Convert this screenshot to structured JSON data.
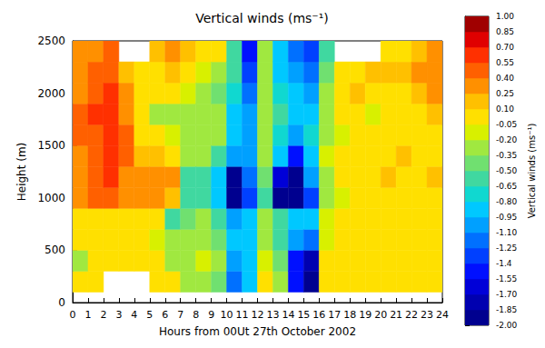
{
  "chart_data": {
    "type": "heatmap",
    "title": "Vertical winds (ms⁻¹)",
    "xlabel": "Hours from 00Ut 27th October 2002",
    "ylabel": "Height (m)",
    "xlim": [
      0,
      24
    ],
    "xticks": [
      0,
      1,
      2,
      3,
      4,
      5,
      6,
      7,
      8,
      9,
      10,
      11,
      12,
      13,
      14,
      15,
      16,
      17,
      18,
      19,
      20,
      21,
      22,
      23,
      24
    ],
    "ylim": [
      0,
      2500
    ],
    "yticks": [
      0,
      500,
      1000,
      1500,
      2000,
      2500
    ],
    "grid": false,
    "cells": {
      "x_edges": [
        0,
        1,
        2,
        3,
        4,
        5,
        6,
        7,
        8,
        9,
        10,
        11,
        12,
        13,
        14,
        15,
        16,
        17,
        18,
        19,
        20,
        21,
        22,
        23,
        24
      ],
      "y_edges": [
        100,
        300,
        500,
        700,
        900,
        1100,
        1300,
        1500,
        1700,
        1900,
        2100,
        2300,
        2500
      ],
      "values_by_hour": [
        [
          0.1,
          -0.3,
          0.0,
          0.1,
          0.3,
          0.4,
          0.4,
          0.5,
          0.5,
          0.4,
          0.3,
          0.3
        ],
        [
          0.1,
          0.1,
          0.0,
          0.1,
          0.5,
          0.5,
          0.5,
          0.5,
          0.6,
          0.5,
          0.5,
          0.4
        ],
        [
          null,
          0.1,
          0.1,
          0.1,
          0.5,
          0.6,
          0.6,
          0.7,
          0.7,
          0.6,
          0.5,
          0.5
        ],
        [
          null,
          0.1,
          0.1,
          0.1,
          0.4,
          0.4,
          0.5,
          0.5,
          0.4,
          0.3,
          0.2,
          null
        ],
        [
          null,
          0.1,
          0.0,
          0.0,
          0.4,
          0.3,
          0.2,
          0.1,
          0.0,
          0.1,
          0.0,
          null
        ],
        [
          0.1,
          0.0,
          -0.1,
          0.0,
          0.4,
          0.4,
          0.2,
          0.0,
          -0.2,
          0.0,
          0.1,
          0.2
        ],
        [
          0.0,
          -0.3,
          -0.2,
          -0.5,
          0.2,
          0.3,
          0.1,
          -0.1,
          -0.3,
          0.0,
          0.2,
          0.3
        ],
        [
          -0.3,
          -0.2,
          -0.3,
          -0.4,
          -0.6,
          -0.5,
          -0.3,
          -0.2,
          -0.3,
          -0.1,
          0.1,
          0.2
        ],
        [
          -0.2,
          -0.1,
          -0.2,
          -0.3,
          -0.6,
          -0.5,
          -0.3,
          -0.2,
          -0.3,
          -0.3,
          -0.1,
          0.1
        ],
        [
          -0.4,
          -0.3,
          -0.4,
          -0.5,
          -0.9,
          -0.8,
          -0.5,
          -0.3,
          -0.3,
          -0.4,
          -0.2,
          0.0
        ],
        [
          -1.2,
          -1.0,
          -0.9,
          -1.0,
          -2.0,
          -1.9,
          -1.0,
          -0.9,
          -0.8,
          -0.7,
          -0.6,
          -0.5
        ],
        [
          -0.9,
          -0.8,
          -0.8,
          -0.9,
          -1.3,
          -1.1,
          -1.0,
          -1.0,
          -1.0,
          -1.1,
          -1.3,
          -1.4
        ],
        [
          0.0,
          -0.1,
          -0.2,
          -0.2,
          -0.5,
          -0.4,
          -0.3,
          -0.2,
          -0.3,
          -0.2,
          -0.3,
          -0.3
        ],
        [
          -0.3,
          -0.4,
          -0.5,
          -0.6,
          -1.9,
          -1.6,
          -0.9,
          -0.7,
          -0.6,
          -0.7,
          -0.8,
          -0.9
        ],
        [
          -1.5,
          -1.4,
          -1.0,
          -0.8,
          -2.0,
          -2.0,
          -1.5,
          -1.0,
          -0.8,
          -0.9,
          -1.0,
          -1.1
        ],
        [
          -2.0,
          -1.8,
          -1.2,
          -0.9,
          -1.3,
          -1.0,
          -0.8,
          -0.7,
          -0.8,
          -1.0,
          -1.2,
          -1.3
        ],
        [
          0.0,
          0.0,
          -0.1,
          -0.1,
          -0.3,
          -0.2,
          -0.1,
          -0.2,
          -0.3,
          -0.2,
          -0.4,
          -0.5
        ],
        [
          0.1,
          0.1,
          0.1,
          0.1,
          -0.1,
          0.0,
          0.0,
          -0.1,
          0.0,
          0.1,
          0.0,
          null
        ],
        [
          0.1,
          0.1,
          0.1,
          0.1,
          0.0,
          0.1,
          0.0,
          0.0,
          0.1,
          0.2,
          0.1,
          null
        ],
        [
          0.1,
          0.1,
          0.1,
          0.1,
          0.1,
          0.0,
          0.1,
          0.0,
          -0.1,
          0.1,
          0.2,
          null
        ],
        [
          0.1,
          0.1,
          0.1,
          0.1,
          0.1,
          0.2,
          0.1,
          0.0,
          0.0,
          0.1,
          0.2,
          0.1
        ],
        [
          0.1,
          0.1,
          0.1,
          0.1,
          0.0,
          0.1,
          0.2,
          0.1,
          0.0,
          0.1,
          0.2,
          0.1
        ],
        [
          0.1,
          0.1,
          0.1,
          0.1,
          0.1,
          0.1,
          0.0,
          0.0,
          0.1,
          0.2,
          0.3,
          0.2
        ],
        [
          0.1,
          0.1,
          0.1,
          0.1,
          0.1,
          0.2,
          0.1,
          0.1,
          0.2,
          0.3,
          0.4,
          0.3
        ]
      ]
    },
    "colorbar": {
      "label": "Vertical winds (ms⁻¹)",
      "range": [
        -2,
        1
      ],
      "ticks": [
        {
          "value": -2,
          "label": "-2.00"
        },
        -1.85,
        {
          "value": -1.7,
          "label": "-1.70"
        },
        -1.55,
        -1.4,
        -1.25,
        {
          "value": -1.1,
          "label": "-1.10"
        },
        -0.95,
        {
          "value": -0.8,
          "label": "-0.80"
        },
        -0.65,
        {
          "value": -0.5,
          "label": "-0.50"
        },
        -0.35,
        {
          "value": -0.2,
          "label": "-0.20"
        },
        -0.05,
        {
          "value": 0.1,
          "label": "0.10"
        },
        0.25,
        {
          "value": 0.4,
          "label": "0.40"
        },
        0.55,
        {
          "value": 0.7,
          "label": "0.70"
        },
        0.85,
        {
          "value": 1,
          "label": "1.00"
        }
      ]
    }
  }
}
